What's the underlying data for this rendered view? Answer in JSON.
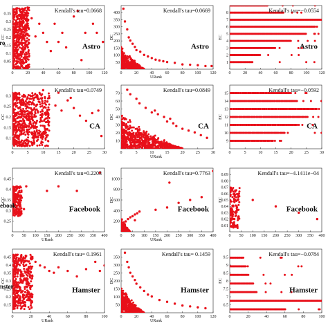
{
  "chart_data": [
    {
      "type": "scatter",
      "dataset": "Astro",
      "xlabel": "",
      "ylabel": "CC",
      "annotation": "Kendall's tau=0.0668",
      "xlim": [
        0,
        120
      ],
      "ylim": [
        0,
        0.35
      ],
      "xticks": [
        "0",
        "20",
        "40",
        "60",
        "80",
        "100",
        "120"
      ],
      "yticks": [
        "0.05",
        "0.1",
        "0.15",
        "0.2",
        "0.25",
        "0.3",
        "0.35"
      ],
      "points": [
        [
          2,
          0.2
        ],
        [
          5,
          0.25
        ],
        [
          8,
          0.15
        ],
        [
          10,
          0.3
        ],
        [
          15,
          0.22
        ],
        [
          20,
          0.12
        ],
        [
          25,
          0.28
        ],
        [
          30,
          0.18
        ],
        [
          35,
          0.25
        ],
        [
          40,
          0.2
        ],
        [
          45,
          0.15
        ],
        [
          50,
          0.1
        ],
        [
          55,
          0.25
        ],
        [
          60,
          0.15
        ],
        [
          65,
          0.2
        ],
        [
          70,
          0.12
        ],
        [
          80,
          0.29
        ],
        [
          85,
          0.32
        ],
        [
          90,
          0.05
        ],
        [
          95,
          0.2
        ],
        [
          105,
          0.25
        ],
        [
          110,
          0.2
        ],
        [
          118,
          0.15
        ]
      ],
      "dense": {
        "xmax": 22,
        "ymin": 0.0,
        "ymax": 0.34,
        "n": 600
      }
    },
    {
      "type": "scatter",
      "dataset": "Astro",
      "xlabel": "URank",
      "ylabel": "DC",
      "annotation": "Kendall's tau=0.0669",
      "xlim": [
        0,
        120
      ],
      "ylim": [
        0,
        400
      ],
      "xticks": [
        "0",
        "20",
        "40",
        "60",
        "80",
        "100",
        "120"
      ],
      "yticks": [
        "50",
        "100",
        "150",
        "200",
        "250",
        "300",
        "350",
        "400"
      ],
      "points": [
        [
          3,
          380
        ],
        [
          5,
          300
        ],
        [
          8,
          250
        ],
        [
          10,
          200
        ],
        [
          12,
          180
        ],
        [
          15,
          160
        ],
        [
          18,
          140
        ],
        [
          20,
          120
        ],
        [
          25,
          110
        ],
        [
          30,
          90
        ],
        [
          35,
          80
        ],
        [
          40,
          70
        ],
        [
          45,
          60
        ],
        [
          50,
          55
        ],
        [
          55,
          50
        ],
        [
          60,
          45
        ],
        [
          70,
          40
        ],
        [
          80,
          30
        ],
        [
          90,
          28
        ],
        [
          100,
          25
        ],
        [
          110,
          20
        ],
        [
          118,
          20
        ]
      ],
      "dense": {
        "xmax": 30,
        "ymin": 0,
        "ymax": 150,
        "n": 400
      }
    },
    {
      "type": "scatter",
      "dataset": "Astro",
      "xlabel": "",
      "ylabel": "EC",
      "annotation": "Kendall's tau=−0.0554",
      "xlim": [
        0,
        120
      ],
      "ylim": [
        0,
        9
      ],
      "xticks": [
        "0",
        "20",
        "40",
        "60",
        "80",
        "100",
        "120"
      ],
      "yticks": [
        "1",
        "2",
        "3",
        "4",
        "5",
        "6",
        "7",
        "8"
      ],
      "rows": [
        [
          1,
          30
        ],
        [
          2,
          40
        ],
        [
          3,
          60
        ],
        [
          4,
          80
        ],
        [
          5,
          100
        ],
        [
          6,
          110
        ],
        [
          7,
          120
        ],
        [
          8,
          70
        ],
        [
          9,
          50
        ]
      ]
    },
    {
      "type": "scatter",
      "dataset": "CA",
      "xlabel": "",
      "ylabel": "CC",
      "annotation": "Kendall's tau=0.0749",
      "xlim": [
        0,
        30
      ],
      "ylim": [
        0.05,
        0.3
      ],
      "xticks": [
        "0",
        "5",
        "10",
        "15",
        "20",
        "25",
        "30"
      ],
      "yticks": [
        "0.1",
        "0.15",
        "0.2",
        "0.25",
        "0.3"
      ],
      "points": [
        [
          8,
          0.26
        ],
        [
          10,
          0.28
        ],
        [
          12,
          0.25
        ],
        [
          14,
          0.22
        ],
        [
          16,
          0.2
        ],
        [
          18,
          0.24
        ],
        [
          20,
          0.21
        ],
        [
          22,
          0.18
        ],
        [
          24,
          0.16
        ],
        [
          26,
          0.19
        ],
        [
          28,
          0.2
        ],
        [
          29,
          0.1
        ],
        [
          15,
          0.27
        ],
        [
          19,
          0.25
        ]
      ],
      "dense": {
        "xmax": 12,
        "ymin": 0.06,
        "ymax": 0.27,
        "n": 700
      }
    },
    {
      "type": "scatter",
      "dataset": "CA",
      "xlabel": "URank",
      "ylabel": "DC",
      "annotation": "Kendall's tau=0.0849",
      "xlim": [
        0,
        30
      ],
      "ylim": [
        0,
        70
      ],
      "xticks": [
        "0",
        "5",
        "10",
        "15",
        "20",
        "25",
        "30"
      ],
      "yticks": [
        "10",
        "20",
        "30",
        "40",
        "50",
        "60",
        "70"
      ],
      "points": [
        [
          2,
          65
        ],
        [
          3,
          60
        ],
        [
          5,
          55
        ],
        [
          6,
          50
        ],
        [
          8,
          45
        ],
        [
          10,
          40
        ],
        [
          12,
          38
        ],
        [
          14,
          35
        ],
        [
          15,
          30
        ],
        [
          17,
          28
        ],
        [
          18,
          25
        ],
        [
          20,
          22
        ],
        [
          22,
          20
        ],
        [
          24,
          18
        ],
        [
          26,
          15
        ],
        [
          28,
          12
        ],
        [
          16,
          33
        ],
        [
          11,
          42
        ]
      ],
      "dense": {
        "xmax": 20,
        "ymin": 0,
        "ymax": 40,
        "n": 700
      }
    },
    {
      "type": "scatter",
      "dataset": "CA",
      "xlabel": "",
      "ylabel": "EC",
      "annotation": "Kendall's tau=−0.0592",
      "xlim": [
        0,
        30
      ],
      "ylim": [
        8,
        16
      ],
      "xticks": [
        "0",
        "5",
        "10",
        "15",
        "20",
        "25",
        "30"
      ],
      "yticks": [
        "9",
        "10",
        "11",
        "12",
        "13",
        "14",
        "15"
      ],
      "rows": [
        [
          9,
          14
        ],
        [
          10,
          18
        ],
        [
          11,
          22
        ],
        [
          12,
          25
        ],
        [
          13,
          28
        ],
        [
          14,
          22
        ],
        [
          15,
          20
        ]
      ]
    },
    {
      "type": "scatter",
      "dataset": "Facebook",
      "xlabel": "URank",
      "ylabel": "CC",
      "annotation": "Kendall's tau=0.2203",
      "xlim": [
        0,
        400
      ],
      "ylim": [
        0.2,
        0.48
      ],
      "xticks": [
        "0",
        "50",
        "100",
        "150",
        "200",
        "250",
        "300",
        "350",
        "400"
      ],
      "yticks": [
        "0.25",
        "0.3",
        "0.35",
        "0.4",
        "0.45"
      ],
      "points": [
        [
          60,
          0.4
        ],
        [
          150,
          0.38
        ],
        [
          200,
          0.4
        ],
        [
          280,
          0.38
        ],
        [
          380,
          0.46
        ],
        [
          50,
          0.3
        ],
        [
          40,
          0.35
        ]
      ],
      "dense": {
        "xmax": 40,
        "ymin": 0.27,
        "ymax": 0.4,
        "n": 220
      }
    },
    {
      "type": "scatter",
      "dataset": "Facebook",
      "xlabel": "URank",
      "ylabel": "DC",
      "annotation": "Kendall's tau=0.7763",
      "xlim": [
        0,
        400
      ],
      "ylim": [
        0,
        1100
      ],
      "xticks": [
        "0",
        "50",
        "100",
        "150",
        "200",
        "250",
        "300",
        "350",
        "400"
      ],
      "yticks": [
        "200",
        "400",
        "600",
        "800",
        "1000"
      ],
      "points": [
        [
          20,
          180
        ],
        [
          30,
          220
        ],
        [
          40,
          250
        ],
        [
          50,
          270
        ],
        [
          60,
          300
        ],
        [
          70,
          320
        ],
        [
          80,
          350
        ],
        [
          150,
          380
        ],
        [
          200,
          420
        ],
        [
          250,
          500
        ],
        [
          300,
          550
        ],
        [
          350,
          600
        ],
        [
          400,
          1050
        ],
        [
          210,
          850
        ],
        [
          60,
          200
        ]
      ],
      "dense": {
        "xmax": 40,
        "ymin": 0,
        "ymax": 280,
        "n": 200
      }
    },
    {
      "type": "scatter",
      "dataset": "Facebook",
      "xlabel": "",
      "ylabel": "EC",
      "annotation": "Kendall's tau=−4.1411e−04",
      "xlim": [
        0,
        400
      ],
      "ylim": [
        0,
        0.1
      ],
      "xticks": [
        "0",
        "50",
        "100",
        "150",
        "200",
        "250",
        "300",
        "350",
        "400"
      ],
      "yticks": [
        "0.01",
        "0.02",
        "0.03",
        "0.04",
        "0.05",
        "0.06",
        "0.07",
        "0.08",
        "0.09"
      ],
      "points": [
        [
          20,
          0.02
        ],
        [
          25,
          0.03
        ],
        [
          30,
          0.04
        ],
        [
          35,
          0.05
        ],
        [
          40,
          0.06
        ],
        [
          100,
          0.05
        ],
        [
          200,
          0.04
        ],
        [
          300,
          0.03
        ],
        [
          380,
          0.02
        ]
      ],
      "dense": {
        "xmax": 45,
        "ymin": 0.005,
        "ymax": 0.07,
        "n": 140
      }
    },
    {
      "type": "scatter",
      "dataset": "Hamster",
      "xlabel": "URank",
      "ylabel": "CC",
      "annotation": "Kendall's tau= 0.1961",
      "xlim": [
        0,
        100
      ],
      "ylim": [
        0.1,
        0.45
      ],
      "xticks": [
        "0",
        "20",
        "40",
        "60",
        "80",
        "100"
      ],
      "yticks": [
        "0.15",
        "0.2",
        "0.25",
        "0.3",
        "0.35",
        "0.4",
        "0.45"
      ],
      "points": [
        [
          20,
          0.4
        ],
        [
          25,
          0.38
        ],
        [
          30,
          0.36
        ],
        [
          35,
          0.35
        ],
        [
          40,
          0.33
        ],
        [
          45,
          0.32
        ],
        [
          50,
          0.35
        ],
        [
          60,
          0.33
        ],
        [
          70,
          0.3
        ],
        [
          80,
          0.34
        ],
        [
          90,
          0.38
        ],
        [
          100,
          0.36
        ],
        [
          95,
          0.33
        ]
      ],
      "dense": {
        "xmax": 22,
        "ymin": 0.12,
        "ymax": 0.42,
        "n": 450
      }
    },
    {
      "type": "scatter",
      "dataset": "Hamster",
      "xlabel": "URank",
      "ylabel": "DC",
      "annotation": "Kendall's tau= 0.1459",
      "xlim": [
        0,
        120
      ],
      "ylim": [
        0,
        350
      ],
      "xticks": [
        "0",
        "20",
        "40",
        "60",
        "80",
        "100",
        "120"
      ],
      "yticks": [
        "50",
        "100",
        "150",
        "200",
        "250",
        "300",
        "350"
      ],
      "points": [
        [
          5,
          330
        ],
        [
          8,
          280
        ],
        [
          10,
          250
        ],
        [
          12,
          220
        ],
        [
          15,
          200
        ],
        [
          18,
          180
        ],
        [
          20,
          160
        ],
        [
          25,
          140
        ],
        [
          30,
          120
        ],
        [
          35,
          100
        ],
        [
          40,
          90
        ],
        [
          50,
          70
        ],
        [
          60,
          60
        ],
        [
          70,
          50
        ],
        [
          80,
          40
        ],
        [
          90,
          35
        ],
        [
          100,
          30
        ],
        [
          110,
          25
        ]
      ],
      "dense": {
        "xmax": 30,
        "ymin": 0,
        "ymax": 150,
        "n": 400
      }
    },
    {
      "type": "scatter",
      "dataset": "Hamster",
      "xlabel": "",
      "ylabel": "EC",
      "annotation": "Kendall's tau=−0.0784",
      "xlim": [
        0,
        100
      ],
      "ylim": [
        6.3,
        10
      ],
      "xticks": [
        "0",
        "20",
        "40",
        "60",
        "80",
        "100"
      ],
      "yticks": [
        "6.5",
        "7",
        "7.5",
        "8",
        "8.5",
        "9",
        "9.5"
      ],
      "rows": [
        [
          6.5,
          60
        ],
        [
          7,
          100
        ],
        [
          7.5,
          30
        ],
        [
          8,
          25
        ],
        [
          8.5,
          20
        ],
        [
          9,
          18
        ],
        [
          9.5,
          15
        ]
      ]
    }
  ],
  "side_labels": [
    "Astro",
    "CA",
    "Facebook",
    "Hamster"
  ],
  "colors": {
    "marker": "#e8101a",
    "axis": "#222222"
  }
}
